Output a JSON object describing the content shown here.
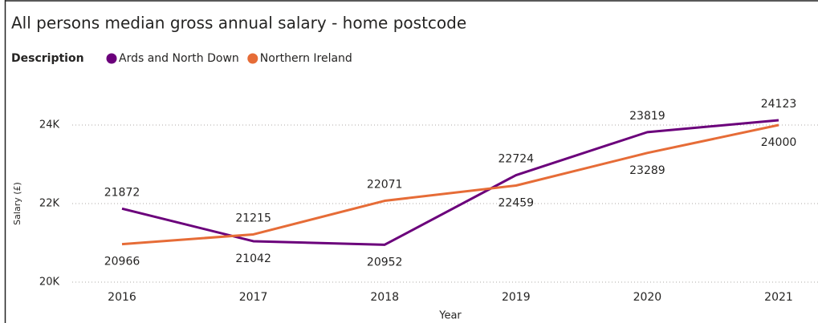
{
  "chart_data": {
    "type": "line",
    "title": "All persons median gross annual salary - home postcode",
    "legend_title": "Description",
    "x_label": "Year",
    "y_label": "Salary (£)",
    "categories": [
      "2016",
      "2017",
      "2018",
      "2019",
      "2020",
      "2021"
    ],
    "series": [
      {
        "name": "Ards and North Down",
        "color": "#6B007B",
        "values": [
          21872,
          21042,
          20952,
          22724,
          23819,
          24123
        ]
      },
      {
        "name": "Northern Ireland",
        "color": "#E66C37",
        "values": [
          20966,
          21215,
          22071,
          22459,
          23289,
          24000
        ]
      }
    ],
    "ylim": [
      20000,
      25000
    ],
    "yticks": [
      {
        "value": 20000,
        "label": "20K"
      },
      {
        "value": 22000,
        "label": "22K"
      },
      {
        "value": 24000,
        "label": "24K"
      }
    ],
    "grid": true,
    "legend_position": "top-left"
  }
}
